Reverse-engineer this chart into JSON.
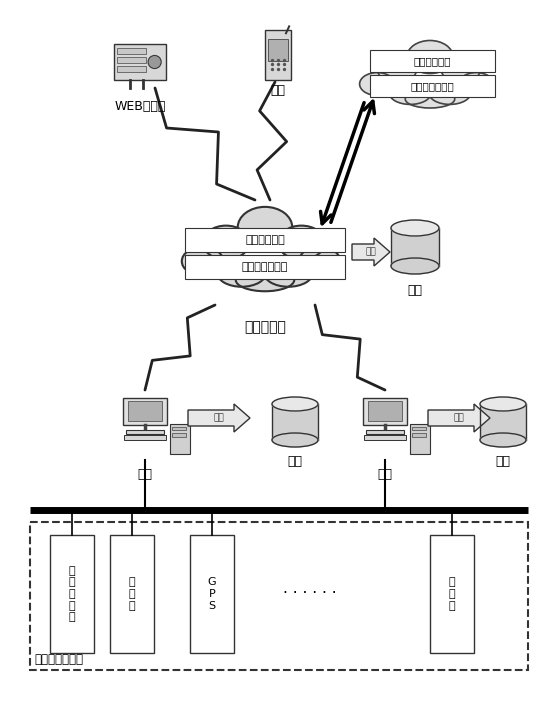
{
  "bg_color": "#ffffff",
  "labels": {
    "web_server": "WEB服务器",
    "phone": "手机",
    "cloud_label": "控制台系统",
    "cloud_line1": "云存储服务端",
    "cloud_line2": "云存储控制节点",
    "data_right": "数据",
    "master": "主机",
    "master_data": "数据",
    "slave": "从机",
    "slave_data": "数据",
    "lower_label": "下位机监控设备",
    "box1": "发\n电\n机\n保\n护",
    "box2": "电\n能\n表",
    "box3": "G\nP\nS",
    "box4": "直\n流\n屏",
    "dots": "· · · · · ·",
    "cloud_top_line1": "云存储服务端",
    "cloud_top_line2": "云存储控制节点",
    "store1": "存储",
    "store2": "存储",
    "store3": "存储"
  }
}
